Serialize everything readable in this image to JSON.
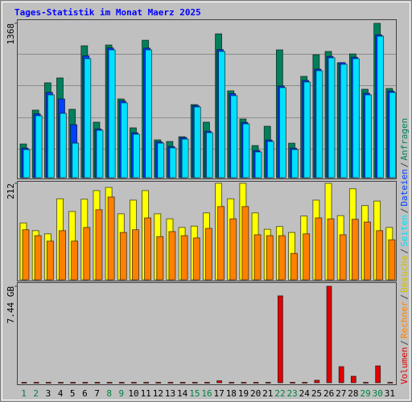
{
  "chart_data": [
    {
      "type": "bar",
      "title": "Tages-Statistik im Monat Maerz 2025",
      "ylim": [
        0,
        1368
      ],
      "yticks": [
        1368
      ],
      "series": [
        {
          "name": "Anfragen",
          "color": "#00805c",
          "values": [
            299,
            599,
            841,
            884,
            606,
            1169,
            492,
            1176,
            698,
            442,
            1218,
            335,
            321,
            363,
            648,
            492,
            1275,
            770,
            520,
            285,
            456,
            1133,
            306,
            898,
            1090,
            1119,
            1019,
            1097,
            784,
            1368,
            791
          ]
        },
        {
          "name": "Dateien",
          "color": "#0040ff",
          "values": [
            262,
            566,
            756,
            698,
            470,
            1080,
            432,
            1150,
            680,
            398,
            1148,
            318,
            276,
            356,
            640,
            412,
            1135,
            745,
            490,
            240,
            334,
            812,
            262,
            862,
            962,
            1075,
            1020,
            1068,
            748,
            1266,
            768
          ]
        },
        {
          "name": "Seiten",
          "color": "#00e0ff",
          "values": [
            249,
            549,
            734,
            570,
            306,
            1055,
            420,
            1133,
            663,
            385,
            1133,
            306,
            264,
            342,
            627,
            399,
            1119,
            727,
            477,
            228,
            321,
            798,
            249,
            848,
            948,
            1062,
            1005,
            1055,
            734,
            1254,
            755
          ]
        }
      ]
    },
    {
      "type": "bar",
      "ylim": [
        0,
        212
      ],
      "yticks": [
        212
      ],
      "series": [
        {
          "name": "Besuche",
          "color": "#ffff00",
          "values": [
            125,
            108,
            101,
            178,
            150,
            177,
            196,
            203,
            145,
            175,
            196,
            145,
            134,
            115,
            118,
            147,
            212,
            178,
            212,
            147,
            111,
            117,
            104,
            140,
            175,
            212,
            141,
            200,
            163,
            173,
            115
          ]
        },
        {
          "name": "Rechner",
          "color": "#ff8000",
          "values": [
            110,
            97,
            85,
            108,
            85,
            115,
            154,
            182,
            104,
            110,
            136,
            95,
            106,
            97,
            92,
            113,
            161,
            134,
            161,
            99,
            97,
            97,
            58,
            101,
            136,
            134,
            99,
            133,
            127,
            108,
            88
          ]
        }
      ]
    },
    {
      "type": "bar",
      "ylim": [
        0,
        7.44
      ],
      "yticks": [
        {
          "value": 7.44,
          "label": "7.44 GB"
        }
      ],
      "categories": [
        "1",
        "2",
        "3",
        "4",
        "5",
        "6",
        "7",
        "8",
        "9",
        "10",
        "11",
        "12",
        "13",
        "14",
        "15",
        "16",
        "17",
        "18",
        "19",
        "20",
        "21",
        "22",
        "23",
        "24",
        "25",
        "26",
        "27",
        "28",
        "29",
        "30",
        "31"
      ],
      "weekend": [
        0,
        1,
        7,
        8,
        14,
        15,
        21,
        22,
        28,
        29
      ],
      "weekend_color": "#008040",
      "series": [
        {
          "name": "Volumen",
          "color": "#e00000",
          "values": [
            0.03,
            0.03,
            0.03,
            0.03,
            0.03,
            0.03,
            0.03,
            0.03,
            0.03,
            0.03,
            0.03,
            0.03,
            0.03,
            0.03,
            0.03,
            0.03,
            0.15,
            0.03,
            0.03,
            0.03,
            0.03,
            6.7,
            0.03,
            0.03,
            0.19,
            7.44,
            1.24,
            0.5,
            0.03,
            1.3,
            0.03
          ]
        }
      ]
    }
  ],
  "legend_separator": "/"
}
